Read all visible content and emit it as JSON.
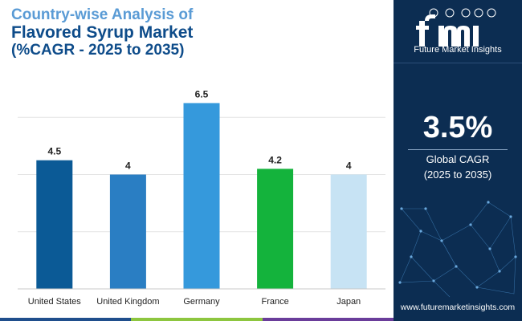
{
  "header": {
    "line1": "Country-wise Analysis of",
    "line2": "Flavored Syrup Market",
    "line3": "(%CAGR - 2025 to 2035)"
  },
  "sidebar": {
    "logo_letters": "fmi",
    "brand": "Future Market Insights",
    "cagr_value": "3.5%",
    "cagr_label_1": "Global CAGR",
    "cagr_label_2": "(2025 to 2035)",
    "website": "www.futuremarketinsights.com"
  },
  "colors": {
    "title_accent": "#5a9bd5",
    "title_dark": "#0e4c8a",
    "sidebar_bg": "#0c2d52",
    "bottom_bar": [
      "#1f4e8c",
      "#8dc63f",
      "#6a3d9a"
    ]
  },
  "chart_data": {
    "type": "bar",
    "categories": [
      "United States",
      "United Kingdom",
      "Germany",
      "France",
      "Japan"
    ],
    "values": [
      4.5,
      4,
      6.5,
      4.2,
      4
    ],
    "value_labels": [
      "4.5",
      "4",
      "6.5",
      "4.2",
      "4"
    ],
    "bar_colors": [
      "#0b5a96",
      "#2a7ec3",
      "#3599dc",
      "#14b33c",
      "#c7e3f4"
    ],
    "ylim": [
      0,
      8
    ],
    "grid": true,
    "gridlines": [
      2,
      4,
      6
    ],
    "title": "",
    "xlabel": "",
    "ylabel": ""
  }
}
